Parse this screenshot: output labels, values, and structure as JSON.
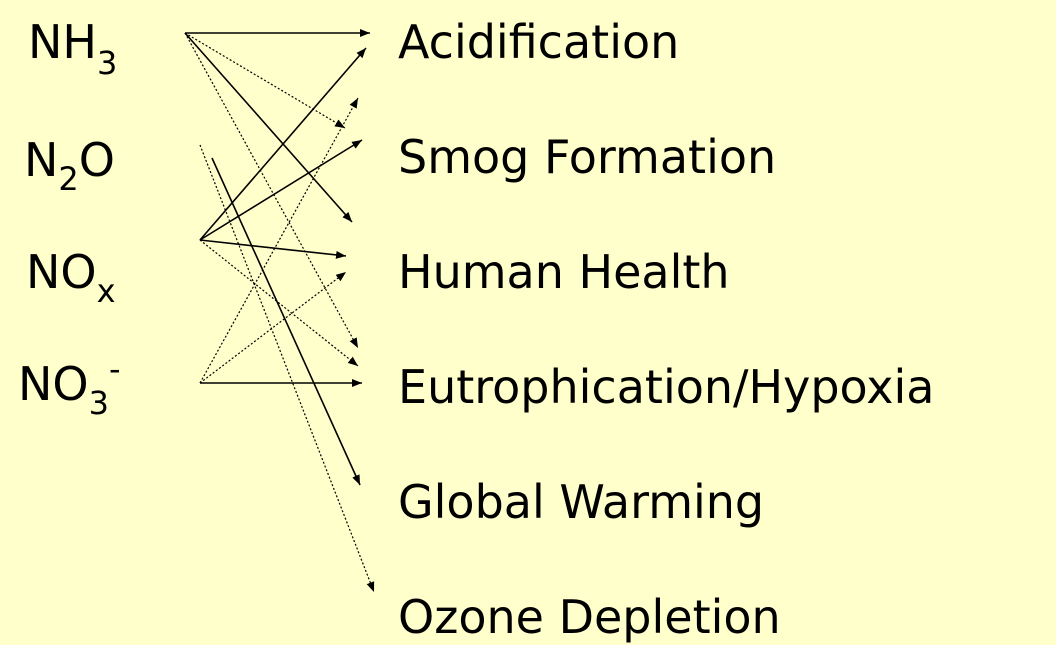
{
  "sources": [
    {
      "main": "NH",
      "sub": "3"
    },
    {
      "main": "N",
      "sub": "2",
      "post": "O"
    },
    {
      "main": "NO",
      "sub": "x"
    },
    {
      "main": "NO",
      "sub": "3",
      "sup": "-"
    }
  ],
  "effects": [
    "Acidification",
    "Smog Formation",
    "Human Health",
    "Eutrophication/Hypoxia",
    "Global Warming",
    "Ozone Depletion"
  ]
}
